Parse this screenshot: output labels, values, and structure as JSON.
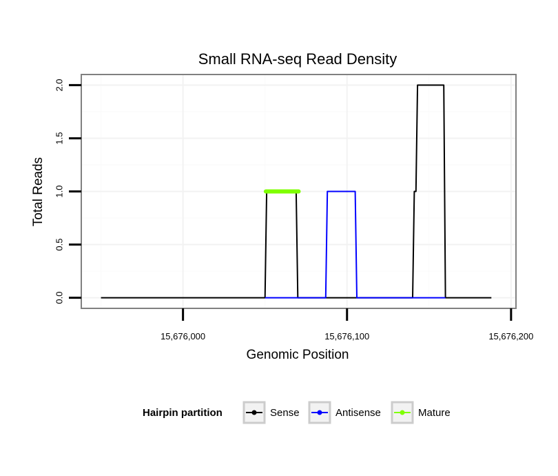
{
  "chart_data": {
    "type": "line",
    "title": "Small RNA-seq Read Density",
    "xlabel": "Genomic Position",
    "ylabel": "Total Reads",
    "xlim": [
      15675938,
      15676203
    ],
    "ylim": [
      -0.1,
      2.1
    ],
    "x_ticks": [
      15676000,
      15676100,
      15676200
    ],
    "x_tick_labels": [
      "15,676,000",
      "15,676,100",
      "15,676,200"
    ],
    "y_ticks": [
      0,
      0.5,
      1,
      1.5,
      2
    ],
    "y_tick_labels": [
      "0.0",
      "0.5",
      "1.0",
      "1.5",
      "2.0"
    ],
    "grid": true,
    "legend": {
      "title": "Hairpin partition",
      "position": "bottom",
      "entries": [
        {
          "name": "Sense",
          "color": "#000000"
        },
        {
          "name": "Antisense",
          "color": "#0000ff"
        },
        {
          "name": "Mature",
          "color": "#7fff00"
        }
      ]
    },
    "series": [
      {
        "name": "Sense",
        "color": "#000000",
        "x": [
          15675950,
          15676050,
          15676051,
          15676069,
          15676070,
          15676140,
          15676141,
          15676142,
          15676143,
          15676159,
          15676160,
          15676188
        ],
        "y": [
          0,
          0,
          1,
          1,
          0,
          0,
          1,
          1,
          2,
          2,
          0,
          0
        ]
      },
      {
        "name": "Antisense",
        "color": "#0000ff",
        "x": [
          15676050,
          15676087,
          15676088,
          15676105,
          15676106,
          15676160
        ],
        "y": [
          0,
          0,
          1,
          1,
          0,
          0
        ]
      },
      {
        "name": "Mature",
        "color": "#7fff00",
        "x": [
          15676050.5,
          15676070.5
        ],
        "y": [
          1,
          1
        ]
      }
    ]
  }
}
